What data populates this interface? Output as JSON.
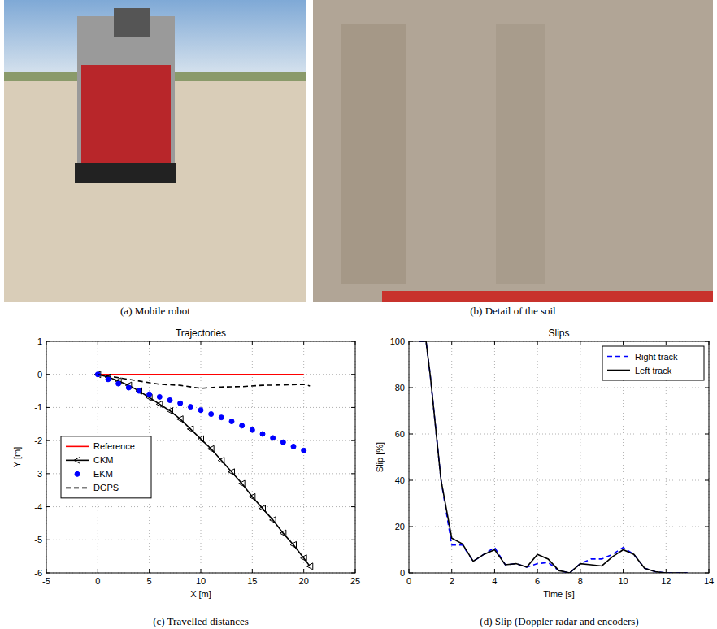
{
  "photos": [
    {
      "caption": "(a) Mobile robot"
    },
    {
      "caption": "(b) Detail of the soil"
    }
  ],
  "chart_data": [
    {
      "type": "line",
      "title": "Trajectories",
      "caption": "(c) Travelled distances",
      "x_label": "X [m]",
      "y_label": "Y [m]",
      "xlim": [
        -5,
        25
      ],
      "ylim": [
        -6,
        1
      ],
      "xticks": [
        -5,
        0,
        5,
        10,
        15,
        20,
        25
      ],
      "yticks": [
        -6,
        -5,
        -4,
        -3,
        -2,
        -1,
        0,
        1
      ],
      "grid": true,
      "legend": "left",
      "series": [
        {
          "name": "Reference",
          "color": "#ff0000",
          "line_style": "solid",
          "marker": "none",
          "x": [
            0,
            20
          ],
          "values": [
            0,
            0
          ]
        },
        {
          "name": "CKM",
          "color": "#000000",
          "line_style": "solid",
          "marker": "triangle-left",
          "x": [
            0,
            1,
            2,
            3,
            4,
            5,
            6,
            7,
            8,
            9,
            10,
            11,
            12,
            13,
            14,
            15,
            16,
            17,
            18,
            19,
            20,
            20.6
          ],
          "values": [
            0,
            -0.08,
            -0.2,
            -0.33,
            -0.5,
            -0.7,
            -0.9,
            -1.1,
            -1.35,
            -1.65,
            -1.95,
            -2.25,
            -2.6,
            -2.95,
            -3.3,
            -3.7,
            -4.05,
            -4.4,
            -4.8,
            -5.15,
            -5.55,
            -5.8
          ]
        },
        {
          "name": "EKM",
          "color": "#0000ff",
          "line_style": "none",
          "marker": "circle",
          "x": [
            0,
            1,
            2,
            3,
            4,
            5,
            6,
            7,
            8,
            9,
            10,
            11,
            12,
            13,
            14,
            15,
            16,
            17,
            18,
            19,
            20
          ],
          "values": [
            0,
            -0.15,
            -0.28,
            -0.4,
            -0.5,
            -0.6,
            -0.68,
            -0.78,
            -0.87,
            -0.98,
            -1.08,
            -1.2,
            -1.3,
            -1.42,
            -1.55,
            -1.68,
            -1.8,
            -1.92,
            -2.05,
            -2.18,
            -2.3
          ]
        },
        {
          "name": "DGPS",
          "color": "#000000",
          "line_style": "dashed",
          "marker": "none",
          "x": [
            0,
            2,
            4,
            6,
            8,
            10,
            12,
            14,
            16,
            18,
            20,
            20.6
          ],
          "values": [
            0,
            -0.1,
            -0.2,
            -0.3,
            -0.33,
            -0.42,
            -0.38,
            -0.37,
            -0.33,
            -0.32,
            -0.3,
            -0.35
          ]
        }
      ]
    },
    {
      "type": "line",
      "title": "Slips",
      "caption": "(d) Slip (Doppler radar and encoders)",
      "x_label": "Time [s]",
      "y_label": "Slip [%]",
      "xlim": [
        0,
        14
      ],
      "ylim": [
        0,
        100
      ],
      "xticks": [
        0,
        2,
        4,
        6,
        8,
        10,
        12,
        14
      ],
      "yticks": [
        0,
        20,
        40,
        60,
        80,
        100
      ],
      "grid": true,
      "legend": "upper right",
      "x": [
        0.5,
        0.8,
        1,
        1.5,
        2,
        2.5,
        3,
        3.5,
        4,
        4.5,
        5,
        5.5,
        6,
        6.5,
        7,
        7.5,
        8,
        8.5,
        9,
        9.5,
        10,
        10.5,
        11,
        11.5,
        12,
        13
      ],
      "series": [
        {
          "name": "Right track",
          "color": "#0000ff",
          "line_style": "dashed",
          "marker": "none",
          "values": [
            100,
            100,
            85,
            40,
            12,
            12,
            5,
            8,
            11,
            3.5,
            4,
            2.5,
            4,
            4.5,
            1,
            0,
            4,
            6,
            6,
            8,
            11,
            8,
            2,
            0.5,
            0,
            0
          ]
        },
        {
          "name": "Left track",
          "color": "#000000",
          "line_style": "solid",
          "marker": "none",
          "values": [
            100,
            100,
            85,
            40,
            15,
            12.5,
            5,
            8,
            10,
            3.5,
            4,
            2.5,
            8,
            6,
            1,
            0,
            4,
            3.5,
            3,
            7,
            10,
            8,
            2,
            0.5,
            0,
            0
          ]
        }
      ]
    }
  ]
}
